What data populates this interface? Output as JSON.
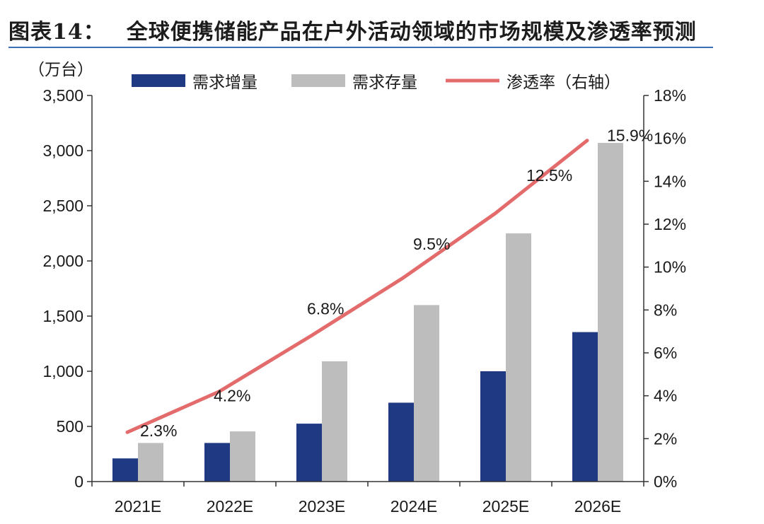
{
  "figure": {
    "label": "图表14：",
    "title": "全球便携储能产品在户外活动领域的市场规模及渗透率预测"
  },
  "colors": {
    "demand_increment": "#1f3a83",
    "demand_stock": "#bdbdbd",
    "penetration": "#e36b6b",
    "title_rule": "#3b6fb6"
  },
  "chart_data": {
    "type": "bar",
    "categories": [
      "2021E",
      "2022E",
      "2023E",
      "2024E",
      "2025E",
      "2026E"
    ],
    "series": [
      {
        "name": "需求增量",
        "type": "bar",
        "axis": "left",
        "values": [
          210,
          350,
          525,
          715,
          1000,
          1355
        ]
      },
      {
        "name": "需求存量",
        "type": "bar",
        "axis": "left",
        "values": [
          350,
          455,
          1090,
          1600,
          2250,
          3070
        ]
      },
      {
        "name": "渗透率（右轴）",
        "type": "line",
        "axis": "right",
        "values": [
          2.3,
          4.2,
          6.8,
          9.5,
          12.5,
          15.9
        ]
      }
    ],
    "data_labels": [
      "2.3%",
      "4.2%",
      "6.8%",
      "9.5%",
      "12.5%",
      "15.9%"
    ],
    "ylabel": "（万台）",
    "ylim": [
      0,
      3500
    ],
    "yticks": [
      "0",
      "500",
      "1,000",
      "1,500",
      "2,000",
      "2,500",
      "3,000",
      "3,500"
    ],
    "y2lim": [
      0,
      18
    ],
    "y2ticks": [
      "0%",
      "2%",
      "4%",
      "6%",
      "8%",
      "10%",
      "12%",
      "14%",
      "16%",
      "18%"
    ],
    "legend_position": "top",
    "grid": false
  }
}
